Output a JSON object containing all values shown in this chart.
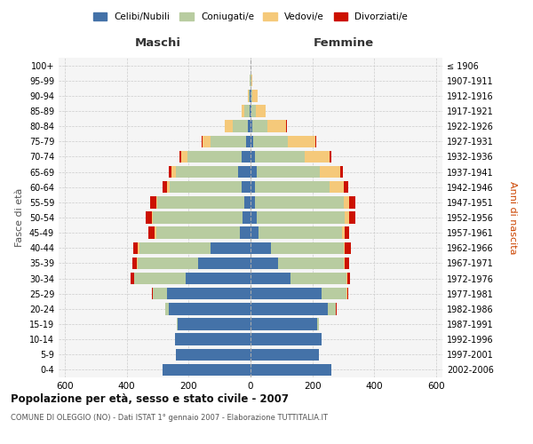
{
  "age_groups": [
    "0-4",
    "5-9",
    "10-14",
    "15-19",
    "20-24",
    "25-29",
    "30-34",
    "35-39",
    "40-44",
    "45-49",
    "50-54",
    "55-59",
    "60-64",
    "65-69",
    "70-74",
    "75-79",
    "80-84",
    "85-89",
    "90-94",
    "95-99",
    "100+"
  ],
  "birth_years": [
    "2002-2006",
    "1997-2001",
    "1992-1996",
    "1987-1991",
    "1982-1986",
    "1977-1981",
    "1972-1976",
    "1967-1971",
    "1962-1966",
    "1957-1961",
    "1952-1956",
    "1947-1951",
    "1942-1946",
    "1937-1941",
    "1932-1936",
    "1927-1931",
    "1922-1926",
    "1917-1921",
    "1912-1916",
    "1907-1911",
    "≤ 1906"
  ],
  "male": {
    "celibi": [
      285,
      240,
      245,
      235,
      265,
      270,
      210,
      170,
      130,
      35,
      25,
      20,
      30,
      40,
      30,
      15,
      8,
      4,
      2,
      0,
      0
    ],
    "coniugati": [
      0,
      0,
      0,
      2,
      10,
      45,
      165,
      195,
      230,
      270,
      290,
      280,
      230,
      200,
      175,
      115,
      50,
      15,
      5,
      2,
      0
    ],
    "vedovi": [
      0,
      0,
      0,
      0,
      0,
      1,
      2,
      3,
      5,
      5,
      5,
      5,
      10,
      15,
      20,
      25,
      25,
      10,
      3,
      1,
      0
    ],
    "divorziati": [
      0,
      0,
      0,
      0,
      1,
      2,
      10,
      15,
      15,
      20,
      18,
      18,
      15,
      8,
      5,
      2,
      0,
      0,
      0,
      0,
      0
    ]
  },
  "female": {
    "nubili": [
      260,
      220,
      230,
      215,
      250,
      230,
      130,
      90,
      65,
      25,
      20,
      15,
      15,
      20,
      15,
      10,
      5,
      3,
      2,
      0,
      0
    ],
    "coniugate": [
      0,
      0,
      1,
      5,
      25,
      80,
      180,
      210,
      235,
      270,
      285,
      285,
      240,
      205,
      160,
      110,
      50,
      15,
      5,
      2,
      0
    ],
    "vedove": [
      0,
      0,
      0,
      0,
      1,
      2,
      2,
      3,
      5,
      10,
      15,
      20,
      45,
      65,
      80,
      90,
      60,
      30,
      15,
      5,
      1
    ],
    "divorziate": [
      0,
      0,
      0,
      0,
      1,
      3,
      10,
      15,
      20,
      15,
      18,
      20,
      15,
      8,
      5,
      3,
      2,
      0,
      0,
      0,
      0
    ]
  },
  "colors": {
    "celibi": "#4472a8",
    "coniugati": "#b8cca0",
    "vedovi": "#f5c97a",
    "divorziati": "#cc1100"
  },
  "legend_labels": [
    "Celibi/Nubili",
    "Coniugati/e",
    "Vedovi/e",
    "Divorziati/e"
  ],
  "title": "Popolazione per età, sesso e stato civile - 2007",
  "subtitle": "COMUNE DI OLEGGIO (NO) - Dati ISTAT 1° gennaio 2007 - Elaborazione TUTTITALIA.IT",
  "label_maschi": "Maschi",
  "label_femmine": "Femmine",
  "ylabel_left": "Fasce di età",
  "ylabel_right": "Anni di nascita",
  "xlim": 620,
  "bg_color": "#ffffff",
  "plot_bg": "#f5f5f5",
  "grid_color": "#cccccc"
}
